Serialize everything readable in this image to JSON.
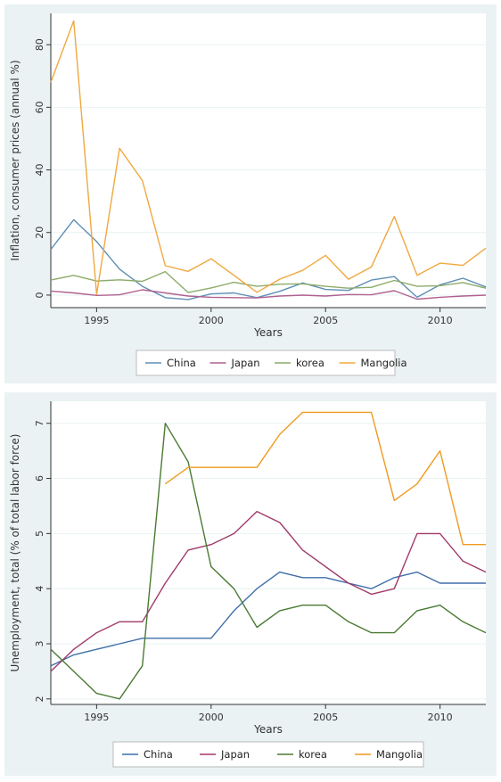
{
  "chart_data": [
    {
      "type": "line",
      "title": "",
      "xlabel": "Years",
      "ylabel": "Inflation, consumer prices (annual %)",
      "x": [
        1993,
        1994,
        1995,
        1996,
        1997,
        1998,
        1999,
        2000,
        2001,
        2002,
        2003,
        2004,
        2005,
        2006,
        2007,
        2008,
        2009,
        2010,
        2011,
        2012
      ],
      "xlim": [
        1993,
        2012
      ],
      "ylim": [
        -4,
        90
      ],
      "xticks": [
        1995,
        2000,
        2005,
        2010
      ],
      "xtick_labels": [
        "1995",
        "2000",
        "2005",
        "2010"
      ],
      "yticks": [
        0,
        20,
        40,
        60,
        80
      ],
      "ytick_labels": [
        "0",
        "20",
        "40",
        "60",
        "80"
      ],
      "grid": true,
      "legend_position": "bottom",
      "series": [
        {
          "name": "China",
          "color": "#5f8fb4",
          "values": [
            14.6,
            24.1,
            17.1,
            8.3,
            2.8,
            -0.8,
            -1.4,
            0.4,
            0.7,
            -0.8,
            1.2,
            3.9,
            1.8,
            1.5,
            4.8,
            5.9,
            -0.7,
            3.3,
            5.4,
            2.6
          ]
        },
        {
          "name": "Japan",
          "color": "#b06090",
          "values": [
            1.3,
            0.7,
            -0.1,
            0.1,
            1.7,
            0.7,
            -0.3,
            -0.7,
            -0.8,
            -0.9,
            -0.3,
            0.0,
            -0.3,
            0.2,
            0.1,
            1.4,
            -1.3,
            -0.7,
            -0.3,
            0.0
          ]
        },
        {
          "name": "korea",
          "color": "#8cab6a",
          "values": [
            4.8,
            6.3,
            4.5,
            4.9,
            4.4,
            7.5,
            0.8,
            2.3,
            4.1,
            2.8,
            3.5,
            3.6,
            2.8,
            2.2,
            2.5,
            4.7,
            2.8,
            3.0,
            4.0,
            2.2
          ]
        },
        {
          "name": "Mangolia",
          "color": "#f0a840",
          "values": [
            68,
            87.6,
            0.2,
            46.9,
            36.6,
            9.4,
            7.6,
            11.6,
            6.3,
            0.9,
            5.1,
            7.9,
            12.7,
            5.1,
            9.0,
            25.1,
            6.3,
            10.2,
            9.5,
            15.0
          ]
        }
      ]
    },
    {
      "type": "line",
      "title": "",
      "xlabel": "Years",
      "ylabel": "Unemployment, total (% of total labor force)",
      "x": [
        1993,
        1994,
        1995,
        1996,
        1997,
        1998,
        1999,
        2000,
        2001,
        2002,
        2003,
        2004,
        2005,
        2006,
        2007,
        2008,
        2009,
        2010,
        2011,
        2012
      ],
      "xlim": [
        1993,
        2012
      ],
      "ylim": [
        1.9,
        7.4
      ],
      "xticks": [
        1995,
        2000,
        2005,
        2010
      ],
      "xtick_labels": [
        "1995",
        "2000",
        "2005",
        "2010"
      ],
      "yticks": [
        2,
        3,
        4,
        5,
        6,
        7
      ],
      "ytick_labels": [
        "2",
        "3",
        "4",
        "5",
        "6",
        "7"
      ],
      "grid": true,
      "legend_position": "bottom",
      "series": [
        {
          "name": "China",
          "color": "#3f6fa8",
          "values": [
            2.6,
            2.8,
            2.9,
            3.0,
            3.1,
            3.1,
            3.1,
            3.1,
            3.6,
            4.0,
            4.3,
            4.2,
            4.2,
            4.1,
            4.0,
            4.2,
            4.3,
            4.1,
            4.1,
            4.1
          ]
        },
        {
          "name": "Japan",
          "color": "#a03a6a",
          "values": [
            2.5,
            2.9,
            3.2,
            3.4,
            3.4,
            4.1,
            4.7,
            4.8,
            5.0,
            5.4,
            5.2,
            4.7,
            4.4,
            4.1,
            3.9,
            4.0,
            5.0,
            5.0,
            4.5,
            4.3
          ]
        },
        {
          "name": "korea",
          "color": "#4a7a32",
          "values": [
            2.9,
            2.5,
            2.1,
            2.0,
            2.6,
            7.0,
            6.3,
            4.4,
            4.0,
            3.3,
            3.6,
            3.7,
            3.7,
            3.4,
            3.2,
            3.2,
            3.6,
            3.7,
            3.4,
            3.2
          ]
        },
        {
          "name": "Mangolia",
          "color": "#f09a20",
          "values": [
            null,
            null,
            null,
            null,
            null,
            5.9,
            6.2,
            6.2,
            6.2,
            6.2,
            6.8,
            7.2,
            7.2,
            7.2,
            7.2,
            5.6,
            5.9,
            6.5,
            4.8,
            4.8
          ]
        }
      ]
    }
  ]
}
